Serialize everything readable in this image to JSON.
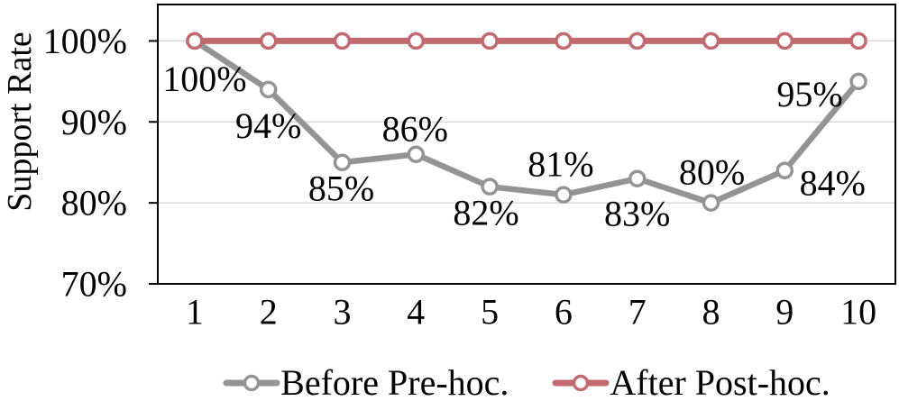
{
  "chart_data": {
    "type": "line",
    "title": "",
    "xlabel": "",
    "ylabel": "Support Rate",
    "categories": [
      "1",
      "2",
      "3",
      "4",
      "5",
      "6",
      "7",
      "8",
      "9",
      "10"
    ],
    "series": [
      {
        "name": "Before Pre-hoc.",
        "color": "#949494",
        "values": [
          100,
          94,
          85,
          86,
          82,
          81,
          83,
          80,
          84,
          95
        ],
        "data_labels": [
          "100%",
          "94%",
          "85%",
          "86%",
          "82%",
          "81%",
          "83%",
          "80%",
          "84%",
          "95%"
        ],
        "label_offsets": [
          [
            11,
            42
          ],
          [
            0,
            40
          ],
          [
            -1,
            29
          ],
          [
            -1,
            -28
          ],
          [
            -4,
            29
          ],
          [
            -3,
            -34
          ],
          [
            0,
            39
          ],
          [
            1,
            -34
          ],
          [
            53,
            14
          ],
          [
            -54,
            14
          ]
        ]
      },
      {
        "name": "After Post-hoc.",
        "color": "#c16a70",
        "values": [
          100,
          100,
          100,
          100,
          100,
          100,
          100,
          100,
          100,
          100
        ],
        "data_labels": null,
        "label_offsets": null
      }
    ],
    "yticks": [
      70,
      80,
      90,
      100
    ],
    "ytick_labels": [
      "70%",
      "80%",
      "90%",
      "100%"
    ],
    "ylim": [
      70,
      104.5
    ],
    "grid": "horizontal-major",
    "grid_color": "#d9d9d9",
    "border_color": "#000000",
    "text_color": "#000000",
    "legend_position": "bottom"
  }
}
